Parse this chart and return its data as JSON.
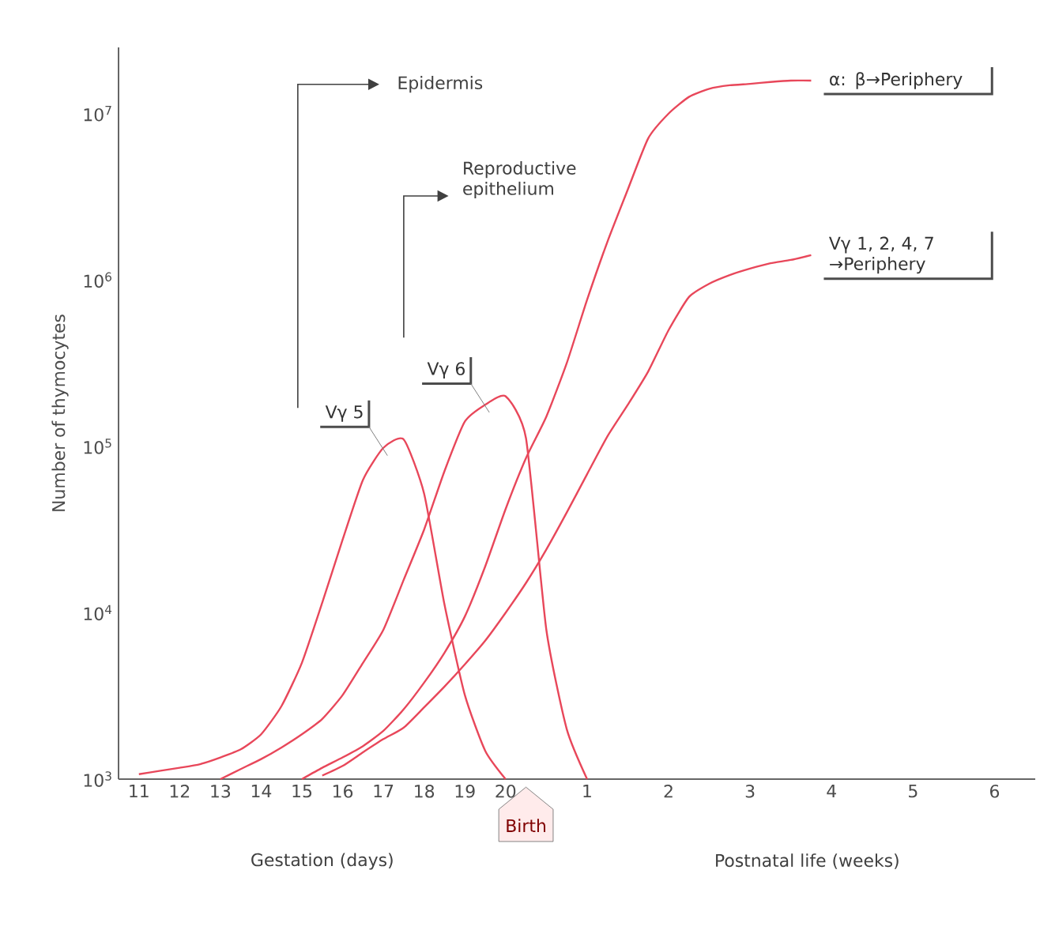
{
  "chart_data": {
    "type": "line",
    "ylabel": "Number of thymocytes",
    "log": "y",
    "ylim": [
      1000,
      25000000
    ],
    "categories": [
      "11",
      null,
      "12",
      null,
      "13",
      null,
      "14",
      null,
      "15",
      null,
      "16",
      null,
      "17",
      null,
      "18",
      null,
      "19",
      null,
      "20",
      null,
      null,
      null,
      "1",
      null,
      null,
      null,
      "2",
      null,
      null,
      null,
      "3",
      null,
      null,
      null,
      "4",
      null,
      null,
      null,
      "5",
      null,
      null,
      null,
      "6",
      null
    ],
    "yticks": [
      {
        "value": 1000,
        "label": "10$^{3}$"
      },
      {
        "value": 10000,
        "label": "10$^{4}$"
      },
      {
        "value": 100000,
        "label": "10$^{5}$"
      },
      {
        "value": 1000000,
        "label": "10$^{6}$"
      },
      {
        "value": 10000000,
        "label": "10$^{7}$"
      }
    ],
    "series": [
      {
        "name": "Vγ 5",
        "color": "#e8475a",
        "values": [
          1070,
          1120,
          1170,
          1230,
          1350,
          1510,
          1860,
          2750,
          5000,
          11500,
          27500,
          63000,
          98000,
          110000,
          52000,
          11200,
          3200,
          1480,
          1000,
          null,
          null,
          null,
          null,
          null,
          null,
          null,
          null,
          null,
          null,
          null,
          null,
          null,
          null,
          null,
          null,
          null,
          null,
          null,
          null,
          null,
          null,
          null,
          null,
          null
        ]
      },
      {
        "name": "Vγ 6",
        "color": "#e8475a",
        "values": [
          null,
          null,
          null,
          null,
          1000,
          1150,
          1320,
          1550,
          1860,
          2300,
          3200,
          5000,
          7900,
          15800,
          31600,
          71000,
          141000,
          178000,
          200000,
          112000,
          7900,
          2000,
          1000,
          null,
          null,
          null,
          null,
          null,
          null,
          null,
          null,
          null,
          null,
          null,
          null,
          null,
          null,
          null,
          null,
          null,
          null,
          null,
          null,
          null
        ]
      },
      {
        "name": "α: β→Periphery",
        "color": "#e8475a",
        "values": [
          null,
          null,
          null,
          null,
          null,
          null,
          null,
          null,
          1000,
          1170,
          1350,
          1580,
          1950,
          2630,
          3800,
          5750,
          9500,
          19000,
          42000,
          85000,
          151000,
          316000,
          760000,
          1700000,
          3500000,
          7100000,
          10000000,
          12600000,
          14100000,
          14800000,
          15100000,
          15500000,
          15800000,
          15800000,
          null,
          null,
          null,
          null,
          null,
          null,
          null,
          null,
          null,
          null
        ]
      },
      {
        "name": "Vγ 1, 2, 4, 7 →Periphery",
        "color": "#e8475a",
        "values": [
          null,
          null,
          null,
          null,
          null,
          null,
          null,
          null,
          null,
          1050,
          1200,
          1450,
          1740,
          2040,
          2700,
          3600,
          4900,
          6800,
          10000,
          15100,
          24000,
          40000,
          68000,
          115000,
          178000,
          282000,
          500000,
          790000,
          950000,
          1070000,
          1170000,
          1260000,
          1320000,
          1410000,
          null,
          null,
          null,
          null,
          null,
          null,
          null,
          null,
          null,
          null
        ]
      }
    ],
    "annotations": [
      "Epidermis",
      "Reproductive epithelium",
      "Gestation (days)",
      "Birth",
      "Postnatal life (weeks)"
    ]
  }
}
